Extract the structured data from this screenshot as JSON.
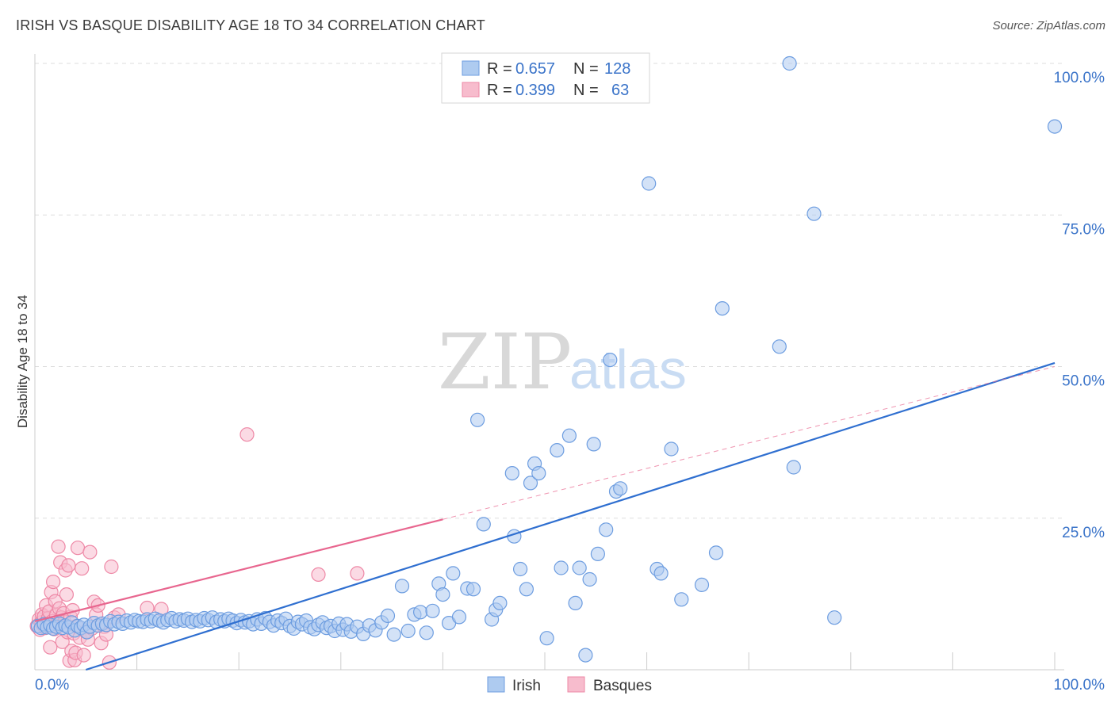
{
  "title": "IRISH VS BASQUE DISABILITY AGE 18 TO 34 CORRELATION CHART",
  "source": "Source: ZipAtlas.com",
  "watermark": {
    "zip": "ZIP",
    "atlas": "atlas"
  },
  "colors": {
    "irish_fill": "#aecbf0",
    "irish_stroke": "#6d9de0",
    "irish_line": "#2f6fd0",
    "basque_fill": "#f7bccd",
    "basque_stroke": "#ee88a6",
    "basque_line": "#e8668f",
    "tick_label": "#3b74c9",
    "grid": "#dddddd"
  },
  "legend": {
    "rows": [
      {
        "r_label": "R = ",
        "r_value": "0.657",
        "n_label": "N = ",
        "n_value": "128",
        "series": "irish"
      },
      {
        "r_label": "R = ",
        "r_value": "0.399",
        "n_label": "N = ",
        "n_value": "63",
        "series": "basque"
      }
    ]
  },
  "bottom_legend": [
    {
      "label": "Irish",
      "series": "irish"
    },
    {
      "label": "Basques",
      "series": "basque"
    }
  ],
  "chart_data": {
    "type": "scatter",
    "title": "IRISH VS BASQUE DISABILITY AGE 18 TO 34 CORRELATION CHART",
    "xlabel": "",
    "ylabel": "Disability Age 18 to 34",
    "xlim": [
      0,
      100
    ],
    "ylim": [
      0,
      100
    ],
    "x_tick_labels": [
      {
        "value": 0,
        "label": "0.0%"
      },
      {
        "value": 100,
        "label": "100.0%"
      }
    ],
    "y_tick_labels": [
      {
        "value": 25,
        "label": "25.0%"
      },
      {
        "value": 50,
        "label": "50.0%"
      },
      {
        "value": 75,
        "label": "75.0%"
      },
      {
        "value": 100,
        "label": "100.0%"
      }
    ],
    "grid": true,
    "series": [
      {
        "name": "Irish",
        "key": "irish",
        "points": [
          [
            0.3,
            7.2
          ],
          [
            0.6,
            6.9
          ],
          [
            0.9,
            7.5
          ],
          [
            1.2,
            7.0
          ],
          [
            1.5,
            7.4
          ],
          [
            1.8,
            6.8
          ],
          [
            2.1,
            7.1
          ],
          [
            2.4,
            7.6
          ],
          [
            2.7,
            6.9
          ],
          [
            3.0,
            7.3
          ],
          [
            3.3,
            7.0
          ],
          [
            3.6,
            7.8
          ],
          [
            3.9,
            6.5
          ],
          [
            4.2,
            7.2
          ],
          [
            4.5,
            6.9
          ],
          [
            4.8,
            7.4
          ],
          [
            5.1,
            6.2
          ],
          [
            5.4,
            7.1
          ],
          [
            5.8,
            7.7
          ],
          [
            6.2,
            7.3
          ],
          [
            6.6,
            7.6
          ],
          [
            7.0,
            7.4
          ],
          [
            7.4,
            8.0
          ],
          [
            7.8,
            7.5
          ],
          [
            8.2,
            7.9
          ],
          [
            8.6,
            7.6
          ],
          [
            9.0,
            8.1
          ],
          [
            9.4,
            7.8
          ],
          [
            9.8,
            8.2
          ],
          [
            10.2,
            8.0
          ],
          [
            10.6,
            7.9
          ],
          [
            11.0,
            8.3
          ],
          [
            11.4,
            8.0
          ],
          [
            11.8,
            8.4
          ],
          [
            12.2,
            8.1
          ],
          [
            12.6,
            7.8
          ],
          [
            13.0,
            8.2
          ],
          [
            13.4,
            8.5
          ],
          [
            13.8,
            8.0
          ],
          [
            14.2,
            8.3
          ],
          [
            14.6,
            8.1
          ],
          [
            15.0,
            8.4
          ],
          [
            15.4,
            7.9
          ],
          [
            15.8,
            8.2
          ],
          [
            16.2,
            8.0
          ],
          [
            16.6,
            8.5
          ],
          [
            17.0,
            8.2
          ],
          [
            17.4,
            8.6
          ],
          [
            17.8,
            7.9
          ],
          [
            18.2,
            8.3
          ],
          [
            18.6,
            8.0
          ],
          [
            19.0,
            8.4
          ],
          [
            19.4,
            8.1
          ],
          [
            19.8,
            7.7
          ],
          [
            20.2,
            8.2
          ],
          [
            20.6,
            7.8
          ],
          [
            21.0,
            8.0
          ],
          [
            21.4,
            7.5
          ],
          [
            21.8,
            8.3
          ],
          [
            22.2,
            7.6
          ],
          [
            22.6,
            8.5
          ],
          [
            23.0,
            7.9
          ],
          [
            23.4,
            7.3
          ],
          [
            23.8,
            8.1
          ],
          [
            24.2,
            7.7
          ],
          [
            24.6,
            8.4
          ],
          [
            25.0,
            7.2
          ],
          [
            25.4,
            6.8
          ],
          [
            25.8,
            7.9
          ],
          [
            26.2,
            7.5
          ],
          [
            26.6,
            8.1
          ],
          [
            27.0,
            7.0
          ],
          [
            27.4,
            6.7
          ],
          [
            27.8,
            7.4
          ],
          [
            28.2,
            7.8
          ],
          [
            28.6,
            6.9
          ],
          [
            29.0,
            7.2
          ],
          [
            29.4,
            6.4
          ],
          [
            29.8,
            7.6
          ],
          [
            30.2,
            6.6
          ],
          [
            30.6,
            7.5
          ],
          [
            31.0,
            6.3
          ],
          [
            31.6,
            7.1
          ],
          [
            32.2,
            5.9
          ],
          [
            32.8,
            7.3
          ],
          [
            33.4,
            6.5
          ],
          [
            34.0,
            7.8
          ],
          [
            34.6,
            8.9
          ],
          [
            35.2,
            5.8
          ],
          [
            36.0,
            13.8
          ],
          [
            36.6,
            6.4
          ],
          [
            37.2,
            9.1
          ],
          [
            37.8,
            9.5
          ],
          [
            38.4,
            6.1
          ],
          [
            39.0,
            9.7
          ],
          [
            39.6,
            14.2
          ],
          [
            40.0,
            12.4
          ],
          [
            40.6,
            7.7
          ],
          [
            41.0,
            15.9
          ],
          [
            41.6,
            8.7
          ],
          [
            42.4,
            13.4
          ],
          [
            43.0,
            13.3
          ],
          [
            43.4,
            41.2
          ],
          [
            44.0,
            24.0
          ],
          [
            44.8,
            8.3
          ],
          [
            45.2,
            9.9
          ],
          [
            45.6,
            11.0
          ],
          [
            46.8,
            32.4
          ],
          [
            47.0,
            22.0
          ],
          [
            47.6,
            16.6
          ],
          [
            48.2,
            13.3
          ],
          [
            48.6,
            30.8
          ],
          [
            49.0,
            34.0
          ],
          [
            49.4,
            32.4
          ],
          [
            50.2,
            5.2
          ],
          [
            51.2,
            36.2
          ],
          [
            51.6,
            16.8
          ],
          [
            52.4,
            38.6
          ],
          [
            53.0,
            11.0
          ],
          [
            53.4,
            16.8
          ],
          [
            54.0,
            2.4
          ],
          [
            54.4,
            14.9
          ],
          [
            54.8,
            37.2
          ],
          [
            55.2,
            19.1
          ],
          [
            56.0,
            23.1
          ],
          [
            56.4,
            51.1
          ],
          [
            57.0,
            29.4
          ],
          [
            57.4,
            29.9
          ],
          [
            60.2,
            80.2
          ],
          [
            61.0,
            16.6
          ],
          [
            61.4,
            15.9
          ],
          [
            62.4,
            36.4
          ],
          [
            63.4,
            11.6
          ],
          [
            65.4,
            14.0
          ],
          [
            66.8,
            19.3
          ],
          [
            67.4,
            59.6
          ],
          [
            73.0,
            53.3
          ],
          [
            74.0,
            100.0
          ],
          [
            74.4,
            33.4
          ],
          [
            76.4,
            75.2
          ],
          [
            78.4,
            8.6
          ],
          [
            100.0,
            89.6
          ]
        ]
      },
      {
        "name": "Basques",
        "key": "basque",
        "points": [
          [
            0.2,
            7.2
          ],
          [
            0.4,
            8.3
          ],
          [
            0.5,
            6.6
          ],
          [
            0.6,
            7.8
          ],
          [
            0.7,
            9.1
          ],
          [
            0.8,
            7.4
          ],
          [
            0.9,
            8.8
          ],
          [
            1.0,
            6.9
          ],
          [
            1.1,
            10.6
          ],
          [
            1.2,
            7.6
          ],
          [
            1.3,
            8.5
          ],
          [
            1.4,
            9.6
          ],
          [
            1.5,
            7.1
          ],
          [
            1.6,
            12.8
          ],
          [
            1.7,
            8.0
          ],
          [
            1.8,
            14.5
          ],
          [
            1.9,
            6.7
          ],
          [
            2.0,
            11.3
          ],
          [
            2.1,
            9.0
          ],
          [
            2.2,
            7.5
          ],
          [
            2.3,
            20.3
          ],
          [
            2.4,
            10.1
          ],
          [
            2.5,
            17.7
          ],
          [
            2.6,
            8.6
          ],
          [
            2.7,
            4.6
          ],
          [
            2.8,
            9.3
          ],
          [
            2.9,
            7.9
          ],
          [
            3.0,
            16.4
          ],
          [
            3.1,
            12.4
          ],
          [
            3.2,
            6.2
          ],
          [
            3.3,
            17.2
          ],
          [
            3.4,
            1.5
          ],
          [
            3.5,
            8.7
          ],
          [
            3.6,
            3.1
          ],
          [
            3.7,
            9.8
          ],
          [
            3.8,
            6.0
          ],
          [
            3.9,
            1.6
          ],
          [
            4.0,
            2.8
          ],
          [
            4.1,
            7.2
          ],
          [
            4.2,
            20.1
          ],
          [
            4.4,
            5.3
          ],
          [
            4.6,
            16.7
          ],
          [
            4.8,
            2.4
          ],
          [
            5.0,
            6.3
          ],
          [
            5.2,
            5.0
          ],
          [
            5.4,
            19.4
          ],
          [
            5.6,
            6.8
          ],
          [
            5.8,
            11.2
          ],
          [
            6.0,
            9.1
          ],
          [
            6.2,
            10.6
          ],
          [
            6.5,
            4.4
          ],
          [
            6.8,
            7.1
          ],
          [
            7.0,
            5.8
          ],
          [
            7.3,
            1.2
          ],
          [
            7.5,
            17.0
          ],
          [
            7.8,
            8.6
          ],
          [
            8.2,
            9.1
          ],
          [
            11.0,
            10.2
          ],
          [
            12.4,
            10.0
          ],
          [
            20.8,
            38.8
          ],
          [
            27.8,
            15.7
          ],
          [
            31.6,
            15.9
          ],
          [
            1.5,
            3.7
          ]
        ]
      }
    ],
    "trend_lines": [
      {
        "series": "irish",
        "style": "solid",
        "from": [
          5.0,
          0.0
        ],
        "to": [
          100.0,
          50.6
        ]
      },
      {
        "series": "basque",
        "style": "solid",
        "from": [
          0.0,
          8.0
        ],
        "to": [
          40.0,
          24.8
        ]
      },
      {
        "series": "basque",
        "style": "dashed",
        "from": [
          40.0,
          24.8
        ],
        "to": [
          100.0,
          50.0
        ]
      }
    ]
  }
}
